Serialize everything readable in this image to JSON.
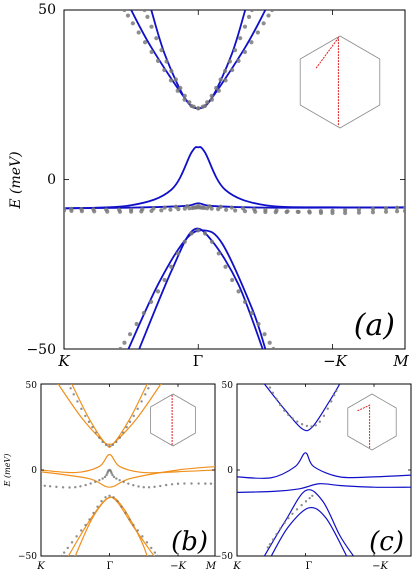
{
  "chart_data": [
    {
      "id": "a",
      "type": "line",
      "panel_label": "(a)",
      "ylabel": "E (meV)",
      "ylim": [
        -50,
        50
      ],
      "yticks": [
        "50",
        "0",
        "−50"
      ],
      "xlim": [
        -1,
        1.54
      ],
      "xticks": [
        {
          "label": "K",
          "x": -1
        },
        {
          "label": "Γ",
          "x": 0
        },
        {
          "label": "−K",
          "x": 1
        },
        {
          "label": "M",
          "x": 1.54
        }
      ],
      "colors": {
        "line": "#1010c8",
        "dots": "#7a7a7a",
        "inset": "#e02020"
      },
      "series": [
        {
          "kind": "line",
          "values": [
            [
              -0.35,
              50
            ],
            [
              -0.25,
              37
            ],
            [
              -0.1,
              24
            ],
            [
              0,
              21
            ],
            [
              0.1,
              24
            ],
            [
              0.25,
              37
            ],
            [
              0.35,
              50
            ]
          ]
        },
        {
          "kind": "line",
          "values": [
            [
              -0.5,
              50
            ],
            [
              -0.35,
              39
            ],
            [
              -0.1,
              24
            ],
            [
              0,
              21
            ],
            [
              0.1,
              24
            ],
            [
              0.35,
              39
            ],
            [
              0.5,
              50
            ]
          ]
        },
        {
          "kind": "line",
          "values": [
            [
              -1,
              -8.5
            ],
            [
              -0.5,
              -7.6
            ],
            [
              -0.2,
              -3
            ],
            [
              -0.05,
              8
            ],
            [
              0,
              9.5
            ],
            [
              0.05,
              8
            ],
            [
              0.2,
              -3
            ],
            [
              0.5,
              -7.6
            ],
            [
              1,
              -8.2
            ],
            [
              1.54,
              -8.2
            ]
          ]
        },
        {
          "kind": "line",
          "values": [
            [
              -1,
              -8.5
            ],
            [
              -0.5,
              -8.3
            ],
            [
              -0.1,
              -7.8
            ],
            [
              0,
              -7
            ],
            [
              0.1,
              -7.8
            ],
            [
              0.5,
              -8.3
            ],
            [
              1,
              -8.3
            ],
            [
              1.54,
              -8.3
            ]
          ]
        },
        {
          "kind": "line",
          "values": [
            [
              -0.52,
              -50
            ],
            [
              -0.3,
              -31
            ],
            [
              -0.1,
              -18
            ],
            [
              0.04,
              -15
            ],
            [
              0.18,
              -19
            ],
            [
              0.4,
              -38
            ],
            [
              0.5,
              -50
            ]
          ]
        },
        {
          "kind": "line",
          "values": [
            [
              -0.44,
              -50
            ],
            [
              -0.2,
              -27
            ],
            [
              -0.04,
              -15
            ],
            [
              0.1,
              -18
            ],
            [
              0.3,
              -31
            ],
            [
              0.48,
              -50
            ]
          ]
        },
        {
          "kind": "dots",
          "values": [
            [
              -0.4,
              50
            ],
            [
              -0.2,
              32
            ],
            [
              0,
              21
            ],
            [
              0.2,
              32
            ],
            [
              0.4,
              50
            ]
          ]
        },
        {
          "kind": "dots",
          "values": [
            [
              -0.55,
              50
            ],
            [
              -0.3,
              35
            ],
            [
              0,
              21
            ],
            [
              0.3,
              35
            ],
            [
              0.55,
              50
            ]
          ]
        },
        {
          "kind": "dots",
          "values": [
            [
              -1,
              -9.2
            ],
            [
              -0.5,
              -9.5
            ],
            [
              -0.1,
              -8.6
            ],
            [
              0,
              -8.2
            ],
            [
              0.1,
              -8.6
            ],
            [
              0.5,
              -9.6
            ],
            [
              1,
              -9.2
            ],
            [
              1.54,
              -8.2
            ]
          ]
        },
        {
          "kind": "dots",
          "values": [
            [
              -1,
              -8.6
            ],
            [
              -0.5,
              -8.9
            ],
            [
              0,
              -7.8
            ],
            [
              0.5,
              -9
            ],
            [
              1,
              -9.9
            ],
            [
              1.54,
              -9.3
            ]
          ]
        },
        {
          "kind": "dots",
          "values": [
            [
              -0.58,
              -50
            ],
            [
              -0.3,
              -33
            ],
            [
              0,
              -15
            ],
            [
              0.3,
              -33
            ],
            [
              0.56,
              -50
            ]
          ]
        }
      ],
      "inset_path": [
        [
          0.2,
          0.35
        ],
        [
          0.48,
          0.02
        ],
        [
          0.48,
          0.98
        ]
      ]
    },
    {
      "id": "b",
      "type": "line",
      "panel_label": "(b)",
      "ylabel": "E (meV)",
      "ylim": [
        -50,
        50
      ],
      "yticks": [
        "50",
        "0",
        "−50"
      ],
      "xlim": [
        -1,
        1.54
      ],
      "xticks": [
        {
          "label": "K",
          "x": -1
        },
        {
          "label": "Γ",
          "x": 0
        },
        {
          "label": "−K",
          "x": 1
        },
        {
          "label": "M",
          "x": 1.54
        }
      ],
      "colors": {
        "line": "#f0901e",
        "dots": "#7a7a7a",
        "inset": "#e02020"
      },
      "series": [
        {
          "kind": "line",
          "values": [
            [
              -0.75,
              50
            ],
            [
              -0.4,
              30
            ],
            [
              -0.1,
              17
            ],
            [
              0,
              15
            ],
            [
              0.1,
              17
            ],
            [
              0.4,
              30
            ],
            [
              0.75,
              50
            ]
          ]
        },
        {
          "kind": "line",
          "values": [
            [
              -0.55,
              50
            ],
            [
              -0.3,
              30
            ],
            [
              -0.05,
              15
            ],
            [
              0.05,
              15
            ],
            [
              0.3,
              30
            ],
            [
              0.55,
              50
            ]
          ]
        },
        {
          "kind": "line",
          "values": [
            [
              -1,
              0
            ],
            [
              -0.5,
              -1.5
            ],
            [
              -0.15,
              2
            ],
            [
              0,
              9
            ],
            [
              0.15,
              2
            ],
            [
              0.5,
              -1.5
            ],
            [
              1,
              -1
            ],
            [
              1.54,
              0
            ]
          ]
        },
        {
          "kind": "line",
          "values": [
            [
              -1,
              -1
            ],
            [
              -0.3,
              -5
            ],
            [
              0,
              -10
            ],
            [
              0.3,
              -5
            ],
            [
              1,
              0
            ],
            [
              1.54,
              2
            ]
          ]
        },
        {
          "kind": "line",
          "values": [
            [
              -0.6,
              -50
            ],
            [
              -0.3,
              -30
            ],
            [
              -0.05,
              -17
            ],
            [
              0.1,
              -18
            ],
            [
              0.35,
              -33
            ],
            [
              0.65,
              -50
            ]
          ]
        },
        {
          "kind": "line",
          "values": [
            [
              -0.5,
              -50
            ],
            [
              -0.25,
              -28
            ],
            [
              0,
              -16
            ],
            [
              0.2,
              -22
            ],
            [
              0.45,
              -40
            ],
            [
              0.55,
              -50
            ]
          ]
        },
        {
          "kind": "dots",
          "values": [
            [
              -0.6,
              50
            ],
            [
              -0.3,
              28
            ],
            [
              0,
              14
            ],
            [
              0.3,
              28
            ],
            [
              0.6,
              50
            ]
          ]
        },
        {
          "kind": "dots",
          "values": [
            [
              -1,
              -9
            ],
            [
              -0.5,
              -10
            ],
            [
              -0.1,
              -5
            ],
            [
              0,
              0
            ],
            [
              0.1,
              -5
            ],
            [
              0.5,
              -10
            ],
            [
              1,
              -8
            ],
            [
              1.54,
              -8
            ]
          ]
        },
        {
          "kind": "dots",
          "values": [
            [
              -0.7,
              -50
            ],
            [
              -0.35,
              -32
            ],
            [
              0,
              -15
            ],
            [
              0.35,
              -32
            ],
            [
              0.7,
              -50
            ]
          ]
        }
      ],
      "inset_path": [
        [
          0.48,
          0.02
        ],
        [
          0.48,
          0.98
        ]
      ]
    },
    {
      "id": "c",
      "type": "line",
      "panel_label": "(c)",
      "ylabel": "",
      "ylim": [
        -50,
        50
      ],
      "yticks": [
        "50",
        "0",
        "−50"
      ],
      "xlim": [
        -1,
        1.54
      ],
      "xticks": [
        {
          "label": "K",
          "x": -1
        },
        {
          "label": "Γ",
          "x": 0
        },
        {
          "label": "−K",
          "x": 1
        }
      ],
      "colors": {
        "line": "#1010c8",
        "dots": "#7a7a7a",
        "inset": "#e02020"
      },
      "series": [
        {
          "kind": "line",
          "values": [
            [
              -0.6,
              50
            ],
            [
              -0.3,
              35
            ],
            [
              -0.05,
              24
            ],
            [
              0.1,
              25
            ],
            [
              0.35,
              40
            ],
            [
              0.5,
              50
            ]
          ]
        },
        {
          "kind": "line",
          "values": [
            [
              -1,
              -4
            ],
            [
              -0.5,
              -4.5
            ],
            [
              -0.15,
              2
            ],
            [
              0,
              10
            ],
            [
              0.12,
              2
            ],
            [
              0.5,
              -4
            ],
            [
              1,
              -4
            ],
            [
              1.54,
              -3
            ]
          ]
        },
        {
          "kind": "line",
          "values": [
            [
              -1,
              -13
            ],
            [
              -0.5,
              -12.5
            ],
            [
              -0.1,
              -11
            ],
            [
              0.2,
              -8
            ],
            [
              0.5,
              -9
            ],
            [
              1,
              -10
            ],
            [
              1.54,
              -10
            ]
          ]
        },
        {
          "kind": "line",
          "values": [
            [
              -0.6,
              -50
            ],
            [
              -0.3,
              -30
            ],
            [
              0,
              -12
            ],
            [
              0.25,
              -18
            ],
            [
              0.5,
              -38
            ],
            [
              0.7,
              -50
            ]
          ]
        },
        {
          "kind": "line",
          "values": [
            [
              -0.5,
              -50
            ],
            [
              -0.25,
              -33
            ],
            [
              0.05,
              -22
            ],
            [
              0.3,
              -28
            ],
            [
              0.6,
              -50
            ]
          ]
        },
        {
          "kind": "dots",
          "values": [
            [
              -0.55,
              50
            ],
            [
              -0.25,
              32
            ],
            [
              0.15,
              26
            ],
            [
              0.45,
              46
            ]
          ]
        },
        {
          "kind": "dots",
          "values": [
            [
              -0.55,
              -45
            ],
            [
              -0.25,
              -28
            ],
            [
              0.1,
              -15
            ]
          ]
        }
      ],
      "inset_path": [
        [
          0.2,
          0.3
        ],
        [
          0.45,
          0.2
        ],
        [
          0.45,
          0.98
        ]
      ]
    }
  ]
}
